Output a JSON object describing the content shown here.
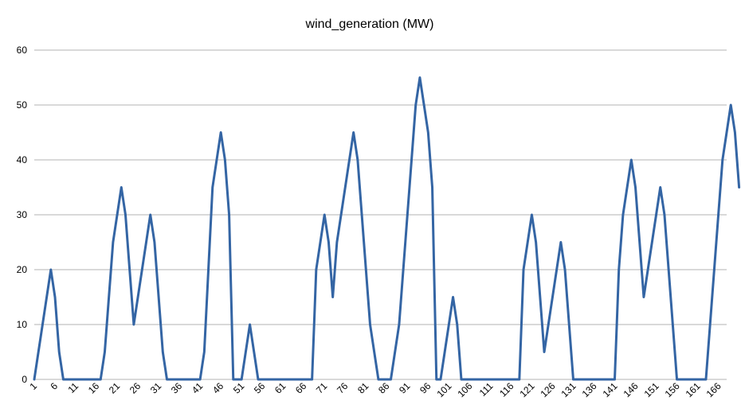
{
  "chart_data": {
    "type": "line",
    "title": "wind_generation (MW)",
    "xlabel": "",
    "ylabel": "",
    "ylim": [
      0,
      60
    ],
    "y_ticks": [
      0,
      10,
      20,
      30,
      40,
      50,
      60
    ],
    "x_range": [
      1,
      168
    ],
    "x_tick_labels": [
      "1",
      "6",
      "11",
      "16",
      "21",
      "26",
      "31",
      "36",
      "41",
      "46",
      "51",
      "56",
      "61",
      "66",
      "71",
      "76",
      "81",
      "86",
      "91",
      "96",
      "101",
      "106",
      "111",
      "116",
      "121",
      "126",
      "131",
      "136",
      "141",
      "146",
      "151",
      "156",
      "161",
      "166"
    ],
    "grid": "horizontal",
    "legend": "none",
    "series": [
      {
        "color": "#3465a4",
        "values": [
          0,
          5,
          10,
          15,
          20,
          15,
          5,
          0,
          0,
          0,
          0,
          0,
          0,
          0,
          0,
          0,
          0,
          5,
          15,
          25,
          30,
          35,
          30,
          20,
          10,
          15,
          20,
          25,
          30,
          25,
          15,
          5,
          0,
          0,
          0,
          0,
          0,
          0,
          0,
          0,
          0,
          5,
          20,
          35,
          40,
          45,
          40,
          30,
          0,
          0,
          0,
          5,
          10,
          5,
          0,
          0,
          0,
          0,
          0,
          0,
          0,
          0,
          0,
          0,
          0,
          0,
          0,
          0,
          20,
          25,
          30,
          25,
          15,
          25,
          30,
          35,
          40,
          45,
          40,
          30,
          20,
          10,
          5,
          0,
          0,
          0,
          0,
          5,
          10,
          20,
          30,
          40,
          50,
          55,
          50,
          45,
          35,
          0,
          0,
          5,
          10,
          15,
          10,
          0,
          0,
          0,
          0,
          0,
          0,
          0,
          0,
          0,
          0,
          0,
          0,
          0,
          0,
          0,
          20,
          25,
          30,
          25,
          15,
          5,
          10,
          15,
          20,
          25,
          20,
          10,
          0,
          0,
          0,
          0,
          0,
          0,
          0,
          0,
          0,
          0,
          0,
          20,
          30,
          35,
          40,
          35,
          25,
          15,
          20,
          25,
          30,
          35,
          30,
          20,
          10,
          0,
          0,
          0,
          0,
          0,
          0,
          0,
          0,
          10,
          20,
          30,
          40,
          45,
          50,
          45,
          35
        ]
      }
    ]
  }
}
